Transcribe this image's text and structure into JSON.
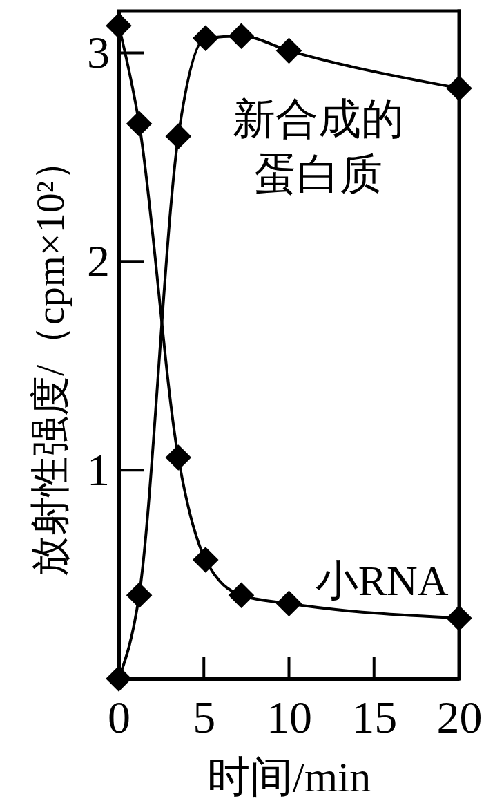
{
  "chart_data": {
    "type": "line",
    "xlabel": "时间/min",
    "ylabel": "放射性强度/（cpm×10²）",
    "xlim": [
      0,
      20
    ],
    "ylim": [
      0,
      3.2
    ],
    "xticks": [
      0,
      5,
      10,
      15,
      20
    ],
    "yticks": [
      1,
      2,
      3
    ],
    "marker": "diamond",
    "series": [
      {
        "name": "新合成的蛋白质",
        "color": "#000000",
        "x": [
          0,
          1.2,
          3.5,
          5.1,
          7.2,
          10,
          20
        ],
        "values": [
          0,
          0.4,
          2.6,
          3.07,
          3.08,
          3.01,
          2.83
        ]
      },
      {
        "name": "小RNA",
        "color": "#000000",
        "x": [
          0,
          1.2,
          3.5,
          5.1,
          7.2,
          10,
          20
        ],
        "values": [
          3.13,
          2.66,
          1.06,
          0.57,
          0.4,
          0.36,
          0.29
        ]
      }
    ]
  }
}
